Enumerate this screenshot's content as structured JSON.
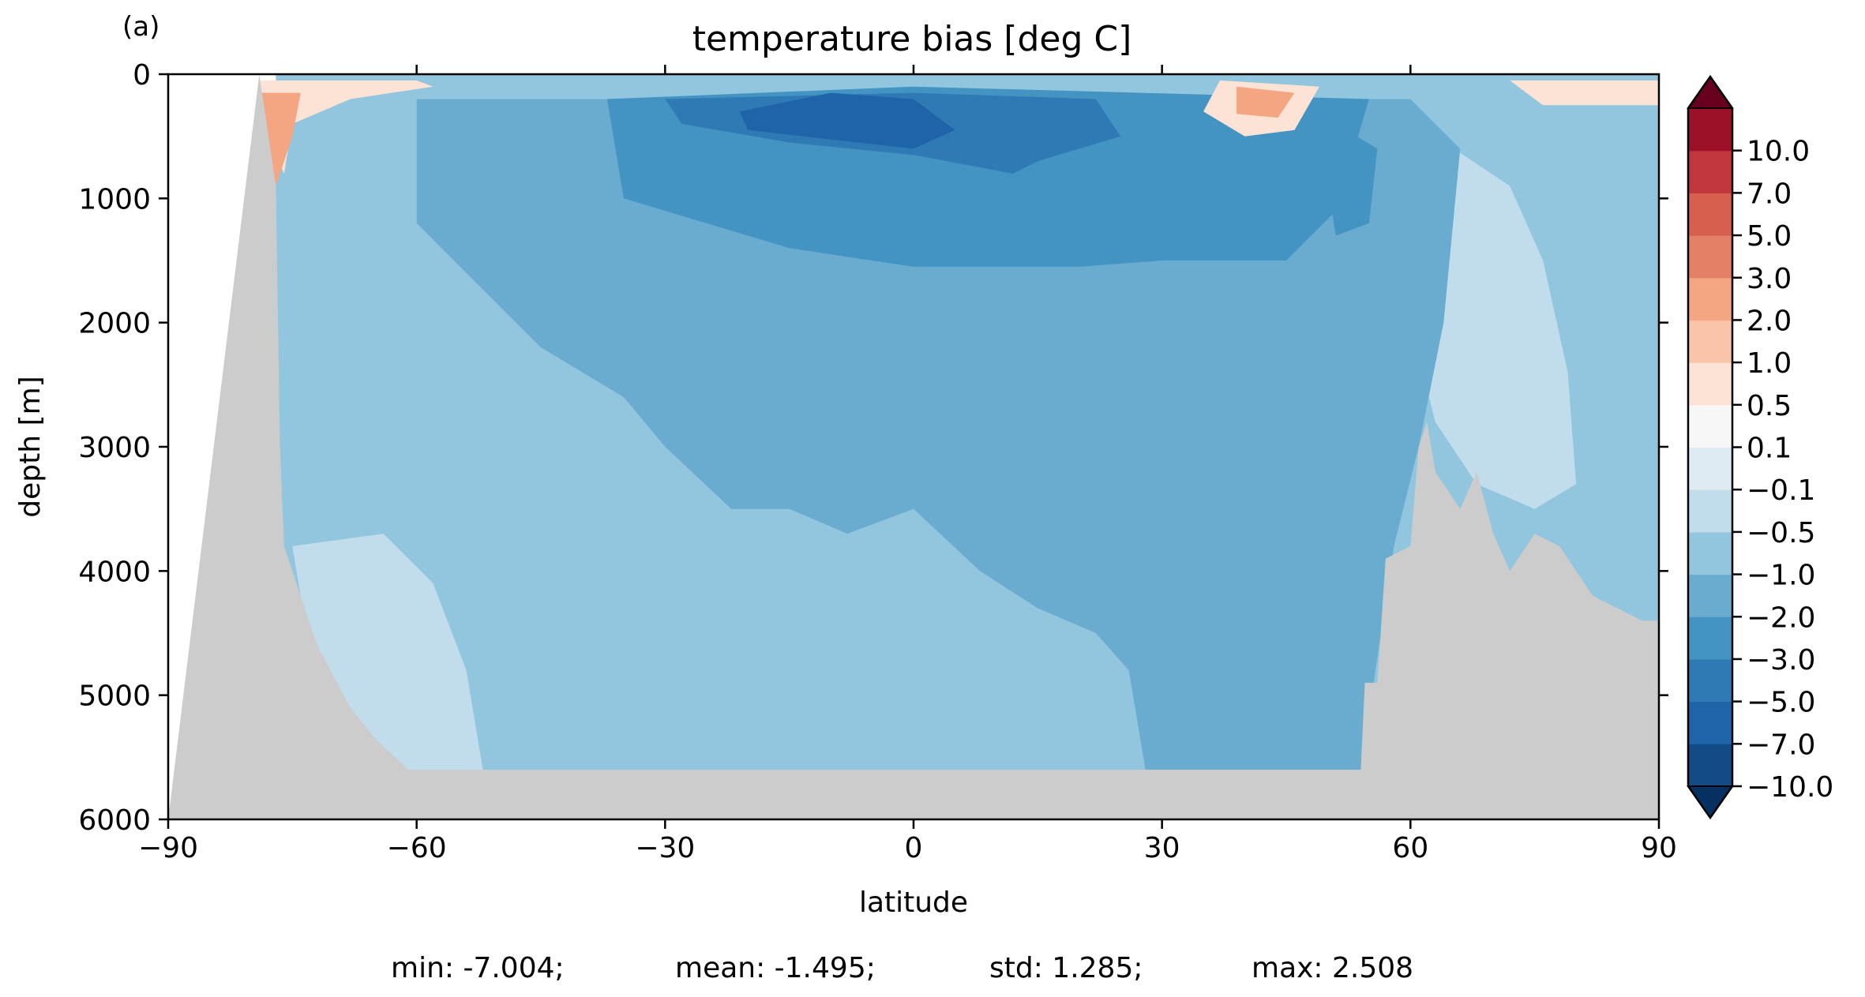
{
  "panel_label": "(a)",
  "footer": {
    "min": "min: -7.004;",
    "mean": "mean: -1.495;",
    "std": "std: 1.285;",
    "max": "max: 2.508"
  },
  "chart_data": {
    "type": "heatmap",
    "title": "temperature bias [deg C]",
    "xlabel": "latitude",
    "ylabel": "depth [m]",
    "xlim": [
      -90,
      90
    ],
    "ylim": [
      6000,
      0
    ],
    "x_ticks": [
      -90,
      -60,
      -30,
      0,
      30,
      60,
      90
    ],
    "x_tick_labels": [
      "−90",
      "−60",
      "−30",
      "0",
      "30",
      "60",
      "90"
    ],
    "y_ticks": [
      0,
      1000,
      2000,
      3000,
      4000,
      5000,
      6000
    ],
    "y_tick_labels": [
      "0",
      "1000",
      "2000",
      "3000",
      "4000",
      "5000",
      "6000"
    ],
    "colorbar": {
      "extend": "both",
      "levels": [
        -10,
        -7,
        -5,
        -3,
        -2,
        -1,
        -0.5,
        -0.1,
        0.1,
        0.5,
        1,
        2,
        3,
        5,
        7,
        10
      ],
      "tick_labels": [
        "−10.0",
        "−7.0",
        "−5.0",
        "−3.0",
        "−2.0",
        "−1.0",
        "−0.5",
        "−0.1",
        "0.1",
        "0.5",
        "1.0",
        "2.0",
        "3.0",
        "5.0",
        "7.0",
        "10.0"
      ],
      "colors": [
        "#134b87",
        "#1f63a8",
        "#2f79b5",
        "#4393c3",
        "#6aacd0",
        "#92c5de",
        "#c1ddec",
        "#deebf2",
        "#f7f7f7",
        "#fce3d5",
        "#f9c4a9",
        "#f4a582",
        "#e48066",
        "#d6604d",
        "#c0363c",
        "#9c1127"
      ],
      "under_color": "#053061",
      "over_color": "#67001f"
    },
    "land_color": "#cccccc",
    "seafloor": [
      {
        "lat": -90,
        "depth": 6000
      },
      {
        "lat": -79,
        "depth": 0
      },
      {
        "lat": -77,
        "depth": 900
      },
      {
        "lat": -76.5,
        "depth": 3000
      },
      {
        "lat": -76,
        "depth": 3800
      },
      {
        "lat": -74,
        "depth": 4200
      },
      {
        "lat": -73,
        "depth": 4400
      },
      {
        "lat": -72,
        "depth": 4600
      },
      {
        "lat": -70,
        "depth": 4850
      },
      {
        "lat": -68,
        "depth": 5100
      },
      {
        "lat": -65,
        "depth": 5350
      },
      {
        "lat": -61,
        "depth": 5600
      },
      {
        "lat": 54,
        "depth": 5600
      },
      {
        "lat": 54.5,
        "depth": 4900
      },
      {
        "lat": 56,
        "depth": 4900
      },
      {
        "lat": 57,
        "depth": 3900
      },
      {
        "lat": 60,
        "depth": 3800
      },
      {
        "lat": 61,
        "depth": 3000
      },
      {
        "lat": 62,
        "depth": 2800
      },
      {
        "lat": 63,
        "depth": 3200
      },
      {
        "lat": 66,
        "depth": 3500
      },
      {
        "lat": 68,
        "depth": 3200
      },
      {
        "lat": 70,
        "depth": 3700
      },
      {
        "lat": 72,
        "depth": 4000
      },
      {
        "lat": 75,
        "depth": 3700
      },
      {
        "lat": 78,
        "depth": 3800
      },
      {
        "lat": 82,
        "depth": 4200
      },
      {
        "lat": 85,
        "depth": 4300
      },
      {
        "lat": 88,
        "depth": 4400
      },
      {
        "lat": 90,
        "depth": 4400
      }
    ],
    "contour_regions": [
      {
        "level": -1.0,
        "points": [
          [
            -77,
            0
          ],
          [
            90,
            0
          ],
          [
            90,
            6000
          ],
          [
            -77,
            6000
          ]
        ]
      },
      {
        "level": -0.5,
        "points": [
          [
            -75,
            3800
          ],
          [
            -64,
            3700
          ],
          [
            -58,
            4100
          ],
          [
            -54,
            4800
          ],
          [
            -52,
            5600
          ],
          [
            -66,
            5600
          ],
          [
            -72,
            5000
          ]
        ]
      },
      {
        "level": -0.5,
        "points": [
          [
            63,
            500
          ],
          [
            72,
            900
          ],
          [
            76,
            1500
          ],
          [
            79,
            2400
          ],
          [
            80,
            3300
          ],
          [
            75,
            3500
          ],
          [
            68,
            3300
          ],
          [
            63,
            2800
          ],
          [
            60,
            2000
          ]
        ]
      },
      {
        "level": -2.0,
        "points": [
          [
            -60,
            200
          ],
          [
            60,
            200
          ],
          [
            66,
            600
          ],
          [
            64,
            2000
          ],
          [
            61,
            3000
          ],
          [
            58,
            3800
          ],
          [
            54,
            5600
          ],
          [
            28,
            5600
          ],
          [
            26,
            4800
          ],
          [
            22,
            4500
          ],
          [
            15,
            4300
          ],
          [
            8,
            4000
          ],
          [
            0,
            3500
          ],
          [
            -8,
            3700
          ],
          [
            -15,
            3500
          ],
          [
            -22,
            3500
          ],
          [
            -30,
            3000
          ],
          [
            -35,
            2600
          ],
          [
            -45,
            2200
          ],
          [
            -60,
            1200
          ]
        ]
      },
      {
        "level": -3.0,
        "points": [
          [
            -37,
            200
          ],
          [
            0,
            100
          ],
          [
            55,
            200
          ],
          [
            51,
            1100
          ],
          [
            45,
            1500
          ],
          [
            30,
            1500
          ],
          [
            20,
            1550
          ],
          [
            0,
            1550
          ],
          [
            -15,
            1400
          ],
          [
            -25,
            1200
          ],
          [
            -35,
            1000
          ]
        ]
      },
      {
        "level": -3.0,
        "points": [
          [
            51,
            400
          ],
          [
            56,
            600
          ],
          [
            55,
            1200
          ],
          [
            51,
            1300
          ],
          [
            50,
            900
          ]
        ]
      },
      {
        "level": -5.0,
        "points": [
          [
            -30,
            200
          ],
          [
            0,
            150
          ],
          [
            22,
            200
          ],
          [
            25,
            500
          ],
          [
            15,
            700
          ],
          [
            12,
            800
          ],
          [
            0,
            650
          ],
          [
            -15,
            550
          ],
          [
            -28,
            400
          ]
        ]
      },
      {
        "level": -7.0,
        "points": [
          [
            -21,
            300
          ],
          [
            -10,
            150
          ],
          [
            0,
            200
          ],
          [
            5,
            450
          ],
          [
            0,
            600
          ],
          [
            -20,
            450
          ]
        ]
      },
      {
        "level": 0.5,
        "points": [
          [
            -79,
            50
          ],
          [
            -60,
            50
          ],
          [
            -58,
            100
          ],
          [
            -68,
            200
          ],
          [
            -75,
            400
          ],
          [
            -76,
            800
          ],
          [
            -78,
            500
          ]
        ]
      },
      {
        "level": 2.0,
        "points": [
          [
            -79,
            150
          ],
          [
            -74,
            150
          ],
          [
            -75,
            500
          ],
          [
            -77,
            900
          ],
          [
            -79,
            700
          ]
        ]
      },
      {
        "level": 0.5,
        "points": [
          [
            37,
            50
          ],
          [
            49,
            100
          ],
          [
            46,
            450
          ],
          [
            40,
            500
          ],
          [
            35,
            300
          ]
        ]
      },
      {
        "level": 2.0,
        "points": [
          [
            39,
            100
          ],
          [
            46,
            150
          ],
          [
            44,
            350
          ],
          [
            39,
            320
          ]
        ]
      },
      {
        "level": 0.5,
        "points": [
          [
            72,
            50
          ],
          [
            90,
            50
          ],
          [
            90,
            250
          ],
          [
            76,
            250
          ]
        ]
      }
    ]
  }
}
